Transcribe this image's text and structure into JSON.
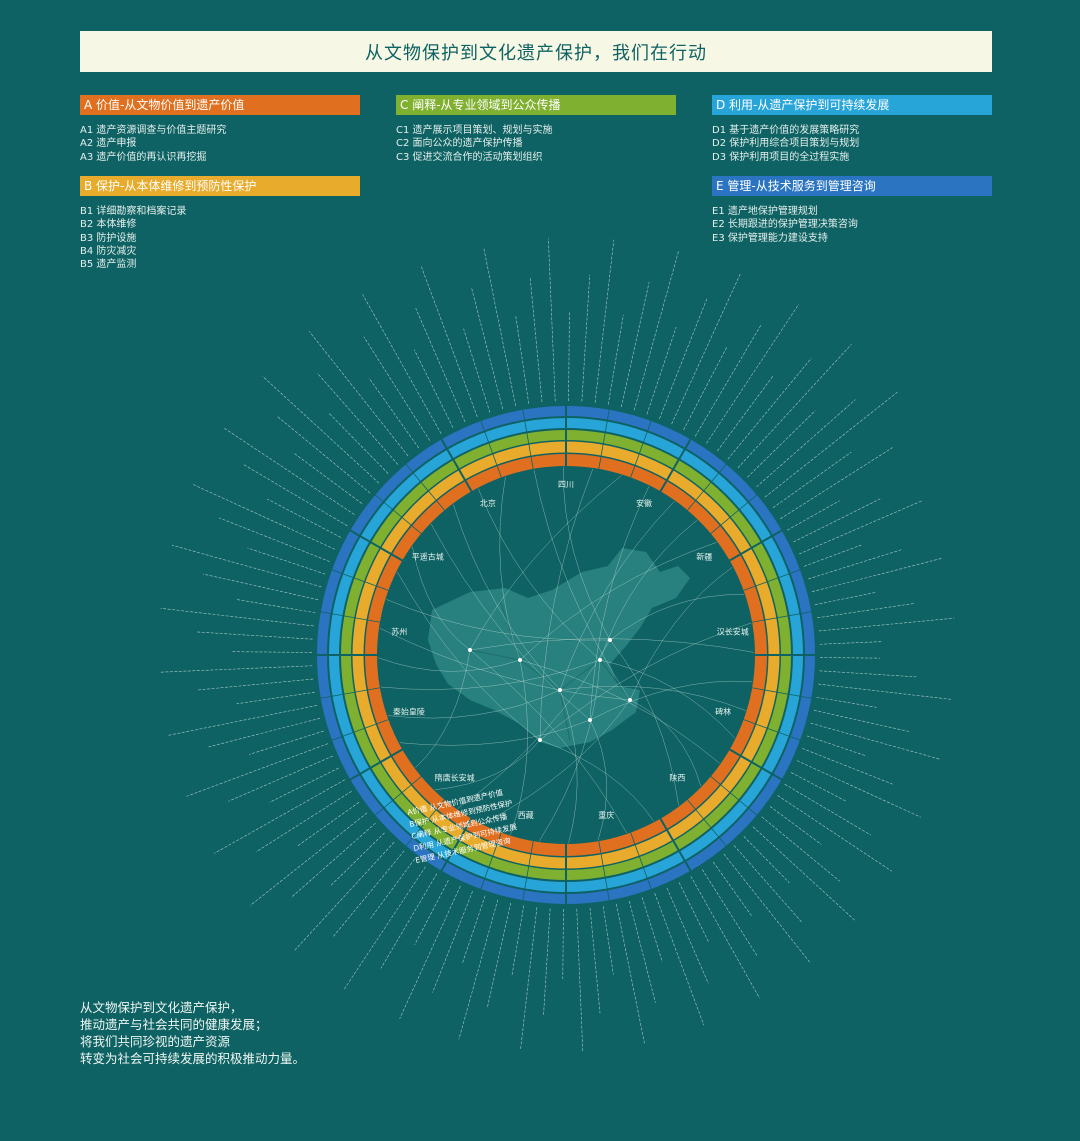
{
  "title": "从文物保护到文化遗产保护，我们在行动",
  "colors": {
    "background": "#0f6263",
    "title_bg": "#f6f7e4",
    "A": "#e0701f",
    "B": "#e8ab2c",
    "C": "#7fb030",
    "D": "#27a5d8",
    "E": "#2a74c2"
  },
  "categories": [
    {
      "key": "A",
      "label": "A 价值-从文物价值到遗产价值",
      "items": [
        "A1 遗产资源调查与价值主题研究",
        "A2 遗产申报",
        "A3 遗产价值的再认识再挖掘"
      ]
    },
    {
      "key": "B",
      "label": "B 保护-从本体维修到预防性保护",
      "items": [
        "B1 详细勘察和档案记录",
        "B2 本体维修",
        "B3 防护设施",
        "B4 防灾减灾",
        "B5 遗产监测"
      ]
    },
    {
      "key": "C",
      "label": "C 阐释-从专业领域到公众传播",
      "items": [
        "C1 遗产展示项目策划、规划与实施",
        "C2 面向公众的遗产保护传播",
        "C3 促进交流合作的活动策划组织"
      ]
    },
    {
      "key": "D",
      "label": "D 利用-从遗产保护到可持续发展",
      "items": [
        "D1 基于遗产价值的发展策略研究",
        "D2 保护利用综合项目策划与规划",
        "D3 保护利用项目的全过程实施"
      ]
    },
    {
      "key": "E",
      "label": "E 管理-从技术服务到管理咨询",
      "items": [
        "E1 遗产地保护管理规划",
        "E2 长期跟进的保护管理决策咨询",
        "E3 保护管理能力建设支持"
      ]
    }
  ],
  "ring_labels": [
    "A价值  从文物价值到遗产价值",
    "B保护  从本体维修到预防性保护",
    "C阐释  从专业领域到公众传播",
    "D利用  从遗产保护到可持续发展",
    "E管理  从技术服务到管理咨询"
  ],
  "inner_place_labels": [
    "四川",
    "安徽",
    "新疆",
    "汉长安城",
    "碑林",
    "陕西",
    "重庆",
    "西藏",
    "隋唐长安城",
    "秦始皇陵",
    "苏州",
    "平遥古城",
    "北京"
  ],
  "closing": [
    "从文物保护到文化遗产保护，",
    "推动遗产与社会共同的健康发展；",
    "将我们共同珍视的遗产资源",
    "转变为社会可持续发展的积极推动力量。"
  ]
}
